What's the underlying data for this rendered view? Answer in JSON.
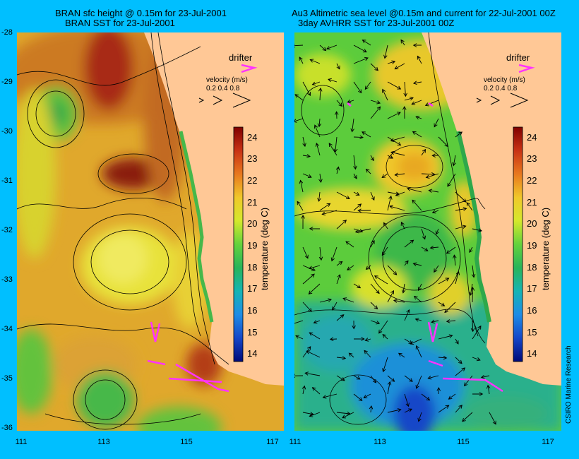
{
  "left_panel": {
    "title_line1": "BRAN sfc height @ 0.15m for 23-Jul-2001",
    "title_line2": "BRAN SST for 23-Jul-2001"
  },
  "right_panel": {
    "title_line1": "Au3 Altimetric sea level  @0.15m and current for 22-Jul-2001 00Z",
    "title_line2": "3day AVHRR SST for 23-Jul-2001 00Z"
  },
  "legend": {
    "drifter_label": "drifter",
    "velocity_label": "velocity (m/s)",
    "velocity_values": "0.2 0.4 0.8"
  },
  "colorbar": {
    "label": "temperature (deg C)",
    "ticks": [
      "24",
      "23",
      "22",
      "21",
      "20",
      "19",
      "18",
      "17",
      "16",
      "15",
      "14"
    ]
  },
  "axes": {
    "lat_ticks": [
      "-28",
      "-29",
      "-30",
      "-31",
      "-32",
      "-33",
      "-34",
      "-35",
      "-36"
    ],
    "lon_ticks": [
      "111",
      "113",
      "115",
      "117"
    ]
  },
  "credit": "CSIRO Marine Research",
  "colors": {
    "background": "#00bfff",
    "land": "#ffc896",
    "drifter": "#ff33ff"
  }
}
